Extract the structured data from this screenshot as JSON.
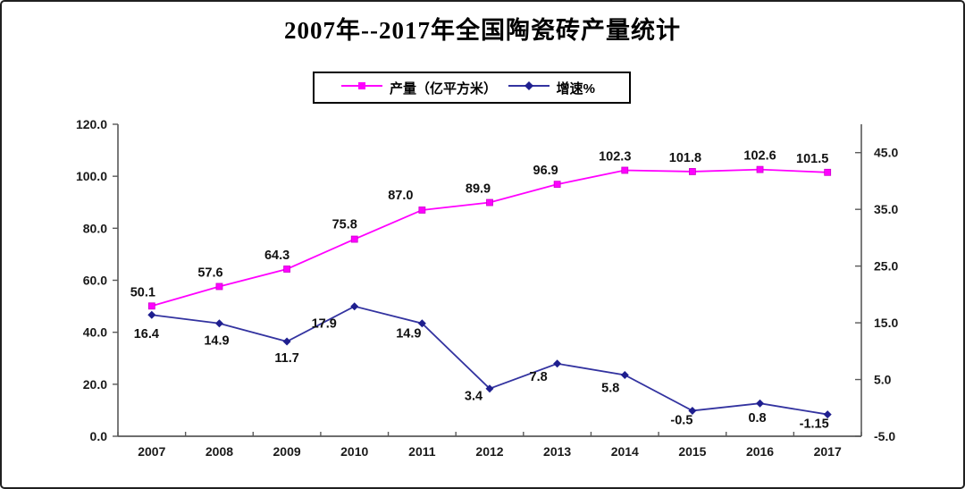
{
  "chart_data": {
    "type": "line",
    "title": "2007年--2017年全国陶瓷砖产量统计",
    "categories": [
      "2007",
      "2008",
      "2009",
      "2010",
      "2011",
      "2012",
      "2013",
      "2014",
      "2015",
      "2016",
      "2017"
    ],
    "series": [
      {
        "name": "产量（亿平方米）",
        "axis": "left",
        "marker": "square",
        "line_color": "#FF00FF",
        "marker_color": "#FF00FF",
        "values": [
          50.1,
          57.6,
          64.3,
          75.8,
          87.0,
          89.9,
          96.9,
          102.3,
          101.8,
          102.6,
          101.5
        ],
        "labels": [
          "50.1",
          "57.6",
          "64.3",
          "75.8",
          "87.0",
          "89.9",
          "96.9",
          "102.3",
          "101.8",
          "102.6",
          "101.5"
        ]
      },
      {
        "name": "增速%",
        "axis": "right",
        "marker": "diamond",
        "line_color": "#3333A0",
        "marker_color": "#1F1F8F",
        "values": [
          16.4,
          14.9,
          11.7,
          17.9,
          14.9,
          3.4,
          7.8,
          5.8,
          -0.5,
          0.8,
          -1.15
        ],
        "labels": [
          "16.4",
          "14.9",
          "11.7",
          "17.9",
          "14.9",
          "3.4",
          "7.8",
          "5.8",
          "-0.5",
          "0.8",
          "-1.15"
        ]
      }
    ],
    "left_axis": {
      "min": 0,
      "max": 120,
      "tick_labels": [
        "0.0",
        "20.0",
        "40.0",
        "60.0",
        "80.0",
        "100.0",
        "120.0"
      ]
    },
    "right_axis": {
      "min": -5,
      "max": 50,
      "tick_labels": [
        "-5.0",
        "5.0",
        "15.0",
        "25.0",
        "35.0",
        "45.0"
      ]
    },
    "legend_position": "top",
    "grid": false,
    "axis_color": "#595959",
    "label_color": "#1a1a1a"
  }
}
